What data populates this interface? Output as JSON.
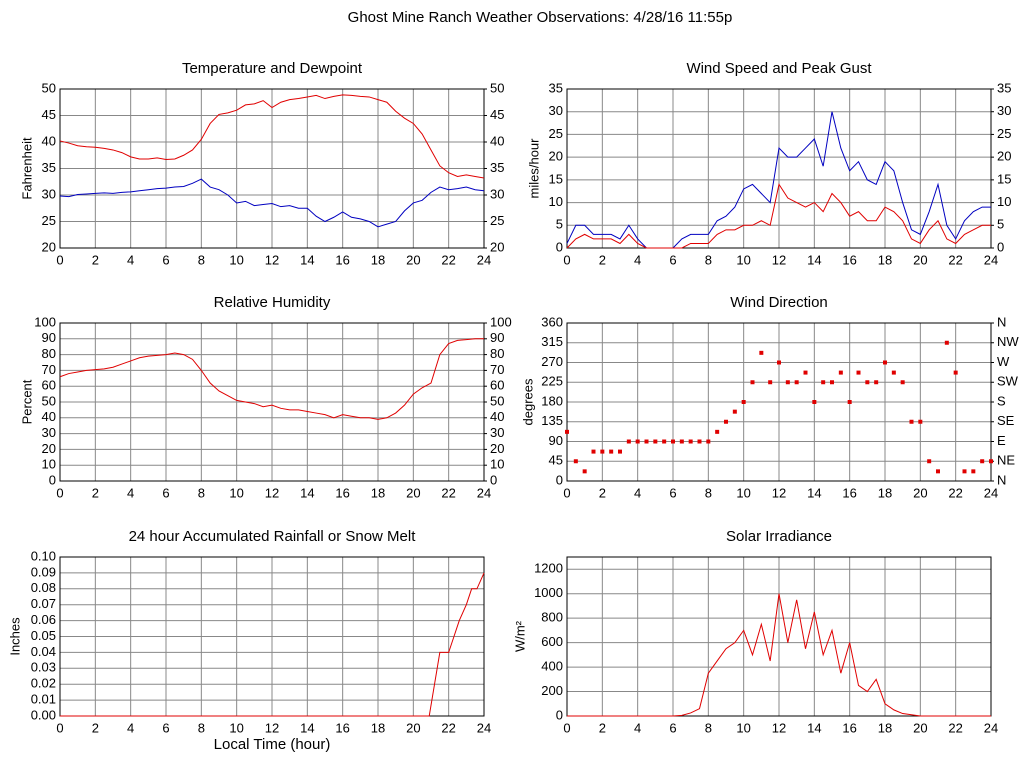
{
  "title": "Ghost Mine Ranch Weather Observations: 4/28/16 11:55p",
  "chart_data": [
    {
      "type": "line",
      "title": "Temperature and Dewpoint",
      "ylabel": "Fahrenheit",
      "grid": true,
      "xlim": [
        0,
        24
      ],
      "xticks": [
        0,
        2,
        4,
        6,
        8,
        10,
        12,
        14,
        16,
        18,
        20,
        22,
        24
      ],
      "ylim": [
        20,
        50
      ],
      "yticks": [
        20,
        25,
        30,
        35,
        40,
        45,
        50
      ],
      "y2lim": [
        20,
        50
      ],
      "y2ticks": [
        20,
        25,
        30,
        35,
        40,
        45,
        50
      ],
      "x": [
        0,
        0.5,
        1,
        1.5,
        2,
        2.5,
        3,
        3.5,
        4,
        4.5,
        5,
        5.5,
        6,
        6.5,
        7,
        7.5,
        8,
        8.5,
        9,
        9.5,
        10,
        10.5,
        11,
        11.5,
        12,
        12.5,
        13,
        13.5,
        14,
        14.5,
        15,
        15.5,
        16,
        16.5,
        17,
        17.5,
        18,
        18.5,
        19,
        19.5,
        20,
        20.5,
        21,
        21.5,
        22,
        22.5,
        23,
        23.5,
        24
      ],
      "series": [
        {
          "color": "#e00000",
          "values": [
            40.2,
            39.8,
            39.3,
            39.1,
            39.0,
            38.8,
            38.5,
            38.0,
            37.2,
            36.8,
            36.8,
            37.0,
            36.7,
            36.8,
            37.5,
            38.5,
            40.5,
            43.5,
            45.2,
            45.5,
            46,
            47,
            47.2,
            47.8,
            46.5,
            47.5,
            48,
            48.2,
            48.5,
            48.8,
            48.2,
            48.6,
            48.9,
            48.8,
            48.6,
            48.5,
            48,
            47.5,
            45.8,
            44.5,
            43.5,
            41.5,
            38.5,
            35.5,
            34.2,
            33.5,
            33.8,
            33.5,
            33.2
          ]
        },
        {
          "color": "#0000c0",
          "values": [
            29.8,
            29.7,
            30.1,
            30.2,
            30.3,
            30.4,
            30.3,
            30.5,
            30.6,
            30.8,
            31,
            31.2,
            31.3,
            31.5,
            31.6,
            32.2,
            33,
            31.5,
            31,
            30,
            28.5,
            28.8,
            28,
            28.2,
            28.4,
            27.8,
            28,
            27.5,
            27.5,
            26,
            25,
            25.8,
            26.8,
            25.8,
            25.5,
            25,
            24,
            24.5,
            25,
            27,
            28.5,
            29,
            30.5,
            31.5,
            31,
            31.2,
            31.5,
            31,
            30.8
          ]
        }
      ]
    },
    {
      "type": "line",
      "title": "Wind Speed and Peak Gust",
      "ylabel": "miles/hour",
      "grid": true,
      "xlim": [
        0,
        24
      ],
      "xticks": [
        0,
        2,
        4,
        6,
        8,
        10,
        12,
        14,
        16,
        18,
        20,
        22,
        24
      ],
      "ylim": [
        0,
        35
      ],
      "yticks": [
        0,
        5,
        10,
        15,
        20,
        25,
        30,
        35
      ],
      "y2lim": [
        0,
        35
      ],
      "y2ticks": [
        0,
        5,
        10,
        15,
        20,
        25,
        30,
        35
      ],
      "x": [
        0,
        0.5,
        1,
        1.5,
        2,
        2.5,
        3,
        3.5,
        4,
        4.5,
        5,
        5.5,
        6,
        6.5,
        7,
        7.5,
        8,
        8.5,
        9,
        9.5,
        10,
        10.5,
        11,
        11.5,
        12,
        12.5,
        13,
        13.5,
        14,
        14.5,
        15,
        15.5,
        16,
        16.5,
        17,
        17.5,
        18,
        18.5,
        19,
        19.5,
        20,
        20.5,
        21,
        21.5,
        22,
        22.5,
        23,
        23.5,
        24
      ],
      "series": [
        {
          "color": "#0000c0",
          "values": [
            1,
            5,
            5,
            3,
            3,
            3,
            2,
            5,
            2,
            0,
            0,
            0,
            0,
            2,
            3,
            3,
            3,
            6,
            7,
            9,
            13,
            14,
            12,
            10,
            22,
            20,
            20,
            22,
            24,
            18,
            30,
            22,
            17,
            19,
            15,
            14,
            19,
            17,
            10,
            4,
            3,
            8,
            14,
            5,
            2,
            6,
            8,
            9,
            9
          ]
        },
        {
          "color": "#e00000",
          "values": [
            0,
            2,
            3,
            2,
            2,
            2,
            1,
            3,
            1,
            0,
            0,
            0,
            0,
            0,
            1,
            1,
            1,
            3,
            4,
            4,
            5,
            5,
            6,
            5,
            14,
            11,
            10,
            9,
            10,
            8,
            12,
            10,
            7,
            8,
            6,
            6,
            9,
            8,
            6,
            2,
            1,
            4,
            6,
            2,
            1,
            3,
            4,
            5,
            5
          ]
        }
      ]
    },
    {
      "type": "line",
      "title": "Relative Humidity",
      "ylabel": "Percent",
      "grid": true,
      "xlim": [
        0,
        24
      ],
      "xticks": [
        0,
        2,
        4,
        6,
        8,
        10,
        12,
        14,
        16,
        18,
        20,
        22,
        24
      ],
      "ylim": [
        0,
        100
      ],
      "yticks": [
        0,
        10,
        20,
        30,
        40,
        50,
        60,
        70,
        80,
        90,
        100
      ],
      "y2lim": [
        0,
        100
      ],
      "y2ticks": [
        0,
        10,
        20,
        30,
        40,
        50,
        60,
        70,
        80,
        90,
        100
      ],
      "x": [
        0,
        0.5,
        1,
        1.5,
        2,
        2.5,
        3,
        3.5,
        4,
        4.5,
        5,
        5.5,
        6,
        6.5,
        7,
        7.5,
        8,
        8.5,
        9,
        9.5,
        10,
        10.5,
        11,
        11.5,
        12,
        12.5,
        13,
        13.5,
        14,
        14.5,
        15,
        15.5,
        16,
        16.5,
        17,
        17.5,
        18,
        18.5,
        19,
        19.5,
        20,
        20.5,
        21,
        21.5,
        22,
        22.5,
        23,
        23.5,
        24
      ],
      "series": [
        {
          "color": "#e00000",
          "values": [
            66,
            68,
            69,
            70,
            70.5,
            71,
            72,
            74,
            76,
            78,
            79,
            79.5,
            80,
            81,
            80,
            77,
            70,
            62,
            57,
            54,
            51,
            50,
            49,
            47,
            48,
            46,
            45,
            45,
            44,
            43,
            42,
            40,
            42,
            41,
            40,
            40,
            39,
            40,
            43,
            48,
            55,
            59,
            62,
            80,
            87,
            89,
            89.5,
            90,
            90
          ]
        }
      ]
    },
    {
      "type": "scatter",
      "title": "Wind Direction",
      "ylabel": "degrees",
      "grid": true,
      "xlim": [
        0,
        24
      ],
      "xticks": [
        0,
        2,
        4,
        6,
        8,
        10,
        12,
        14,
        16,
        18,
        20,
        22,
        24
      ],
      "ylim": [
        0,
        360
      ],
      "yticks": [
        0,
        45,
        90,
        135,
        180,
        225,
        270,
        315,
        360
      ],
      "y2lim": [
        0,
        360
      ],
      "y2ticks": [
        {
          "value": 0,
          "label": "N"
        },
        {
          "value": 45,
          "label": "NE"
        },
        {
          "value": 90,
          "label": "E"
        },
        {
          "value": 135,
          "label": "SE"
        },
        {
          "value": 180,
          "label": "S"
        },
        {
          "value": 225,
          "label": "SW"
        },
        {
          "value": 270,
          "label": "W"
        },
        {
          "value": 315,
          "label": "NW"
        },
        {
          "value": 360,
          "label": "N"
        }
      ],
      "x": [
        0,
        0.5,
        1,
        1.5,
        2,
        2.5,
        3,
        3.5,
        4,
        4.5,
        5,
        5.5,
        6,
        6.5,
        7,
        7.5,
        8,
        8.5,
        9,
        9.5,
        10,
        10.5,
        11,
        11.5,
        12,
        12.5,
        13,
        13.5,
        14,
        14.5,
        15,
        15.5,
        16,
        16.5,
        17,
        17.5,
        18,
        18.5,
        19,
        19.5,
        20,
        20.5,
        21,
        21.5,
        22,
        22.5,
        23,
        23.5,
        24
      ],
      "series": [
        {
          "color": "#e00000",
          "values": [
            112,
            45,
            22,
            67,
            67,
            67,
            67,
            90,
            90,
            90,
            90,
            90,
            90,
            90,
            90,
            90,
            90,
            112,
            135,
            158,
            180,
            225,
            292,
            225,
            270,
            225,
            225,
            247,
            180,
            225,
            225,
            247,
            180,
            247,
            225,
            225,
            270,
            247,
            225,
            135,
            135,
            45,
            22,
            315,
            247,
            22,
            22,
            45,
            45
          ]
        }
      ]
    },
    {
      "type": "line",
      "title": "24 hour Accumulated Rainfall or Snow Melt",
      "ylabel": "Inches",
      "xlabel": "Local Time (hour)",
      "grid": true,
      "xlim": [
        0,
        24
      ],
      "xticks": [
        0,
        2,
        4,
        6,
        8,
        10,
        12,
        14,
        16,
        18,
        20,
        22,
        24
      ],
      "ylim": [
        0,
        0.1
      ],
      "yticks": [
        {
          "value": 0,
          "label": "0.00"
        },
        {
          "value": 0.01,
          "label": "0.01"
        },
        {
          "value": 0.02,
          "label": "0.02"
        },
        {
          "value": 0.03,
          "label": "0.03"
        },
        {
          "value": 0.04,
          "label": "0.04"
        },
        {
          "value": 0.05,
          "label": "0.05"
        },
        {
          "value": 0.06,
          "label": "0.06"
        },
        {
          "value": 0.07,
          "label": "0.07"
        },
        {
          "value": 0.08,
          "label": "0.08"
        },
        {
          "value": 0.09,
          "label": "0.09"
        },
        {
          "value": 0.1,
          "label": "0.10"
        }
      ],
      "x": [
        0,
        20.9,
        21.2,
        21.5,
        22,
        22.3,
        22.6,
        23,
        23.3,
        23.6,
        24
      ],
      "series": [
        {
          "color": "#e00000",
          "values": [
            0,
            0,
            0.02,
            0.04,
            0.04,
            0.05,
            0.06,
            0.07,
            0.08,
            0.08,
            0.09
          ]
        }
      ]
    },
    {
      "type": "line",
      "title": "Solar Irradiance",
      "ylabel": "W/m²",
      "grid": true,
      "xlim": [
        0,
        24
      ],
      "xticks": [
        0,
        2,
        4,
        6,
        8,
        10,
        12,
        14,
        16,
        18,
        20,
        22,
        24
      ],
      "ylim": [
        0,
        1300
      ],
      "yticks": [
        0,
        200,
        400,
        600,
        800,
        1000,
        1200
      ],
      "x": [
        0,
        0.5,
        1,
        1.5,
        2,
        2.5,
        3,
        3.5,
        4,
        4.5,
        5,
        5.5,
        6,
        6.5,
        7,
        7.5,
        8,
        8.5,
        9,
        9.5,
        10,
        10.5,
        11,
        11.5,
        12,
        12.5,
        13,
        13.5,
        14,
        14.5,
        15,
        15.5,
        16,
        16.5,
        17,
        17.5,
        18,
        18.5,
        19,
        19.5,
        20,
        20.5,
        21,
        21.5,
        22,
        22.5,
        23,
        23.5,
        24
      ],
      "series": [
        {
          "color": "#e00000",
          "values": [
            0,
            0,
            0,
            0,
            0,
            0,
            0,
            0,
            0,
            0,
            0,
            0,
            0,
            5,
            25,
            60,
            350,
            450,
            550,
            600,
            700,
            500,
            750,
            450,
            1000,
            600,
            950,
            550,
            850,
            500,
            700,
            350,
            600,
            250,
            200,
            300,
            100,
            50,
            20,
            10,
            0,
            0,
            0,
            0,
            0,
            0,
            0,
            0,
            0
          ]
        }
      ]
    }
  ]
}
